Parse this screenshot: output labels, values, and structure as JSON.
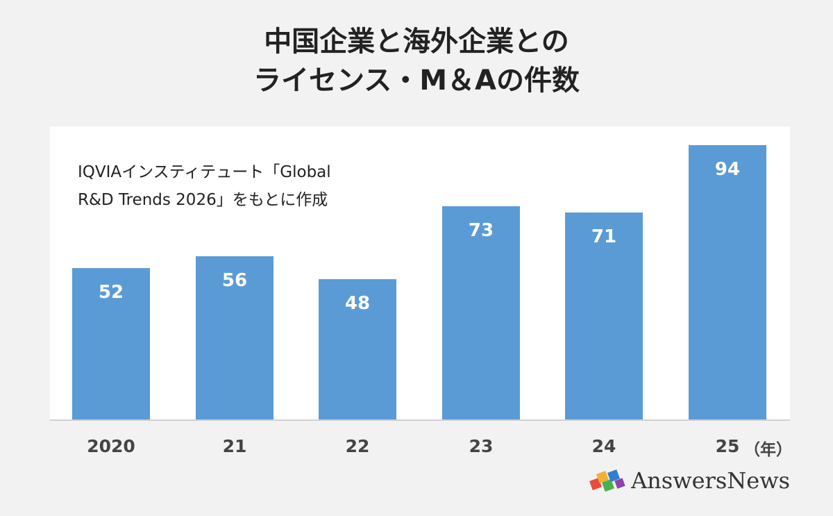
{
  "title_line1": "中国企業と海外企業との",
  "title_line2": "ライセンス・M＆Aの件数",
  "source_line1": "IQVIAインスティテュート「Global",
  "source_line2": "R&D Trends 2026」をもとに作成",
  "x_unit": "（年）",
  "brand": "AnswersNews",
  "colors": {
    "bar": "#5b9bd5",
    "background": "#f2f2f2",
    "panel": "#ffffff"
  },
  "chart_data": {
    "type": "bar",
    "categories": [
      "2020",
      "21",
      "22",
      "23",
      "24",
      "25"
    ],
    "values": [
      52,
      56,
      48,
      73,
      71,
      94
    ],
    "ylim": [
      0,
      100
    ],
    "grid": false,
    "legend": "none"
  }
}
